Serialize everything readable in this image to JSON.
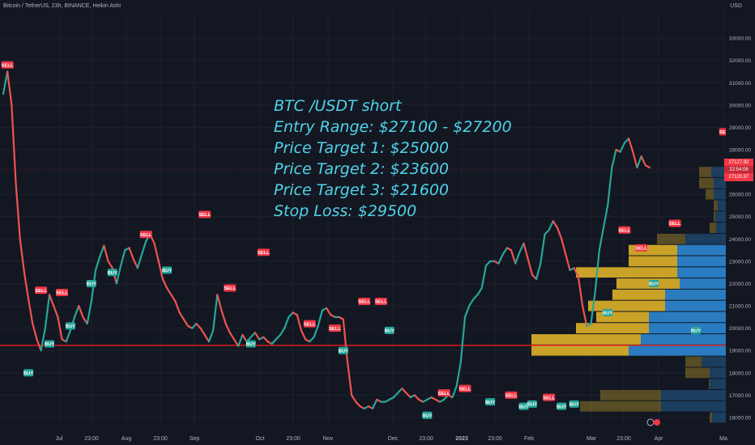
{
  "header": {
    "symbol_line": "Bitcoin / TetherUS, 23h, BINANCE, Heikin Ashi",
    "currency": "USD"
  },
  "annotation": {
    "lines": [
      "BTC /USDT short",
      "Entry Range: $27100 - $27200",
      "Price Target 1: $25000",
      "Price Target 2: $23600",
      "Price Target 3: $21600",
      "Stop Loss: $29500"
    ]
  },
  "price_tags": {
    "last": "27127.92",
    "countdown": "22:54:08",
    "other": "27120.87"
  },
  "colors": {
    "background": "#131722",
    "grid": "#1e222d",
    "up": "#26a69a",
    "down": "#ef5350",
    "annotation": "#4fd3e8",
    "support_line": "#ff1e1e",
    "vp_gold": "#c9a227",
    "vp_blue": "#2a7bc0"
  },
  "chart_data": {
    "type": "line",
    "y_axis_ticks": [
      "33000.00",
      "32000.00",
      "31000.00",
      "30000.00",
      "29000.00",
      "28000.00",
      "27000.00",
      "26000.00",
      "25000.00",
      "24000.00",
      "23000.00",
      "22000.00",
      "21000.00",
      "20000.00",
      "19000.00",
      "18000.00",
      "17000.00",
      "16000.00"
    ],
    "x_axis_ticks": [
      "Jul",
      "23:00",
      "Aug",
      "23:00",
      "Sep",
      "Oct",
      "23:00",
      "Nov",
      "Dec",
      "23:00",
      "2023",
      "23:00",
      "Feb",
      "Mar",
      "23:00",
      "Apr",
      "Ma"
    ],
    "ylim": [
      15600,
      34200
    ],
    "horizontal_lines": [
      19230,
      27130
    ],
    "series": [
      {
        "values": [
          30500,
          31500,
          30000,
          26500,
          24000,
          22500,
          21300,
          20200,
          19500,
          19000,
          20000,
          21500,
          21000,
          20500,
          19500,
          19400,
          19900,
          20500,
          21000,
          20500,
          20200,
          21200,
          22600,
          23200,
          23700,
          23000,
          22700,
          22000,
          22800,
          23500,
          23600,
          23100,
          22700,
          23300,
          23900,
          24200,
          23800,
          23000,
          22200,
          21800,
          21500,
          21200,
          20700,
          20400,
          20100,
          20000,
          20200,
          20000,
          19700,
          19400,
          19900,
          21500,
          20800,
          20200,
          19800,
          19500,
          19200,
          19700,
          19400,
          19600,
          19800,
          19500,
          19600,
          19400,
          19300,
          19500,
          19700,
          20000,
          20500,
          20700,
          20600,
          19900,
          19500,
          19400,
          19600,
          20100,
          20800,
          20900,
          20600,
          20500,
          20500,
          20400,
          18500,
          17000,
          16700,
          16500,
          16400,
          16500,
          16400,
          16800,
          16700,
          16700,
          16800,
          16900,
          17100,
          17300,
          17100,
          16900,
          17000,
          16800,
          16700,
          16800,
          16900,
          16800,
          16700,
          16800,
          17000,
          16900,
          17400,
          18500,
          20500,
          21000,
          21300,
          21500,
          21800,
          22800,
          23000,
          23000,
          22900,
          23300,
          23600,
          23500,
          22900,
          23400,
          23800,
          23100,
          22400,
          22200,
          22900,
          24200,
          24400,
          24800,
          24500,
          24000,
          23300,
          22600,
          22700,
          22300,
          21000,
          20100,
          20200,
          21600,
          23500,
          24500,
          25500,
          27200,
          28000,
          27900,
          28300,
          28500,
          27900,
          27200,
          27700,
          27300,
          27200
        ]
      }
    ],
    "markers": [
      {
        "label": "SELL",
        "x": 1,
        "y": 31800
      },
      {
        "label": "SELL",
        "x": 9,
        "y": 21700
      },
      {
        "label": "SELL",
        "x": 14,
        "y": 21600
      },
      {
        "label": "BUY",
        "x": 6,
        "y": 18000
      },
      {
        "label": "BUY",
        "x": 11,
        "y": 19300
      },
      {
        "label": "BUY",
        "x": 16,
        "y": 20100
      },
      {
        "label": "BUY",
        "x": 21,
        "y": 22000
      },
      {
        "label": "BUY",
        "x": 26,
        "y": 22500
      },
      {
        "label": "SELL",
        "x": 34,
        "y": 24200
      },
      {
        "label": "BUY",
        "x": 39,
        "y": 22600
      },
      {
        "label": "SELL",
        "x": 48,
        "y": 25100
      },
      {
        "label": "SELL",
        "x": 54,
        "y": 21800
      },
      {
        "label": "BUY",
        "x": 59,
        "y": 19300
      },
      {
        "label": "SELL",
        "x": 62,
        "y": 23400
      },
      {
        "label": "SELL",
        "x": 73,
        "y": 20200
      },
      {
        "label": "SELL",
        "x": 79,
        "y": 20000
      },
      {
        "label": "BUY",
        "x": 81,
        "y": 19000
      },
      {
        "label": "SELL",
        "x": 86,
        "y": 21200
      },
      {
        "label": "SELL",
        "x": 90,
        "y": 21200
      },
      {
        "label": "BUY",
        "x": 92,
        "y": 19900
      },
      {
        "label": "BUY",
        "x": 101,
        "y": 16100
      },
      {
        "label": "SELL",
        "x": 105,
        "y": 17100
      },
      {
        "label": "SELL",
        "x": 110,
        "y": 17300
      },
      {
        "label": "BUY",
        "x": 116,
        "y": 16700
      },
      {
        "label": "SELL",
        "x": 121,
        "y": 17000
      },
      {
        "label": "BUY",
        "x": 124,
        "y": 16500
      },
      {
        "label": "BUY",
        "x": 126,
        "y": 16600
      },
      {
        "label": "SELL",
        "x": 130,
        "y": 16900
      },
      {
        "label": "BUY",
        "x": 133,
        "y": 16500
      },
      {
        "label": "BUY",
        "x": 136,
        "y": 16600
      },
      {
        "label": "BUY",
        "x": 144,
        "y": 20700
      },
      {
        "label": "SELL",
        "x": 148,
        "y": 24400
      },
      {
        "label": "SELL",
        "x": 152,
        "y": 23600
      },
      {
        "label": "BUY",
        "x": 155,
        "y": 22000
      },
      {
        "label": "SELL",
        "x": 160,
        "y": 24700
      },
      {
        "label": "BUY",
        "x": 165,
        "y": 19900
      },
      {
        "label": "SELL",
        "x": 172,
        "y": 28800
      }
    ],
    "volume_profile": [
      {
        "price": 16000,
        "gold": 3,
        "blue": 17,
        "active": false
      },
      {
        "price": 16500,
        "gold": 100,
        "blue": 80,
        "active": false
      },
      {
        "price": 17000,
        "gold": 75,
        "blue": 80,
        "active": false
      },
      {
        "price": 17500,
        "gold": 1,
        "blue": 20,
        "active": false
      },
      {
        "price": 18000,
        "gold": 30,
        "blue": 20,
        "active": false
      },
      {
        "price": 18500,
        "gold": 20,
        "blue": 30,
        "active": false
      },
      {
        "price": 19000,
        "gold": 120,
        "blue": 120,
        "active": true
      },
      {
        "price": 19500,
        "gold": 135,
        "blue": 105,
        "active": true
      },
      {
        "price": 20000,
        "gold": 90,
        "blue": 95,
        "active": true
      },
      {
        "price": 20500,
        "gold": 65,
        "blue": 95,
        "active": true
      },
      {
        "price": 21000,
        "gold": 95,
        "blue": 75,
        "active": true
      },
      {
        "price": 21500,
        "gold": 65,
        "blue": 75,
        "active": true
      },
      {
        "price": 22000,
        "gold": 78,
        "blue": 57,
        "active": true
      },
      {
        "price": 22500,
        "gold": 125,
        "blue": 60,
        "active": true
      },
      {
        "price": 23000,
        "gold": 60,
        "blue": 60,
        "active": true
      },
      {
        "price": 23500,
        "gold": 60,
        "blue": 60,
        "active": true
      },
      {
        "price": 24000,
        "gold": 35,
        "blue": 50,
        "active": false
      },
      {
        "price": 24500,
        "gold": 8,
        "blue": 12,
        "active": false
      },
      {
        "price": 25000,
        "gold": 2,
        "blue": 13,
        "active": false
      },
      {
        "price": 25500,
        "gold": 5,
        "blue": 10,
        "active": false
      },
      {
        "price": 26000,
        "gold": 10,
        "blue": 15,
        "active": false
      },
      {
        "price": 26500,
        "gold": 18,
        "blue": 15,
        "active": false
      },
      {
        "price": 27000,
        "gold": 15,
        "blue": 18,
        "active": false
      }
    ]
  }
}
